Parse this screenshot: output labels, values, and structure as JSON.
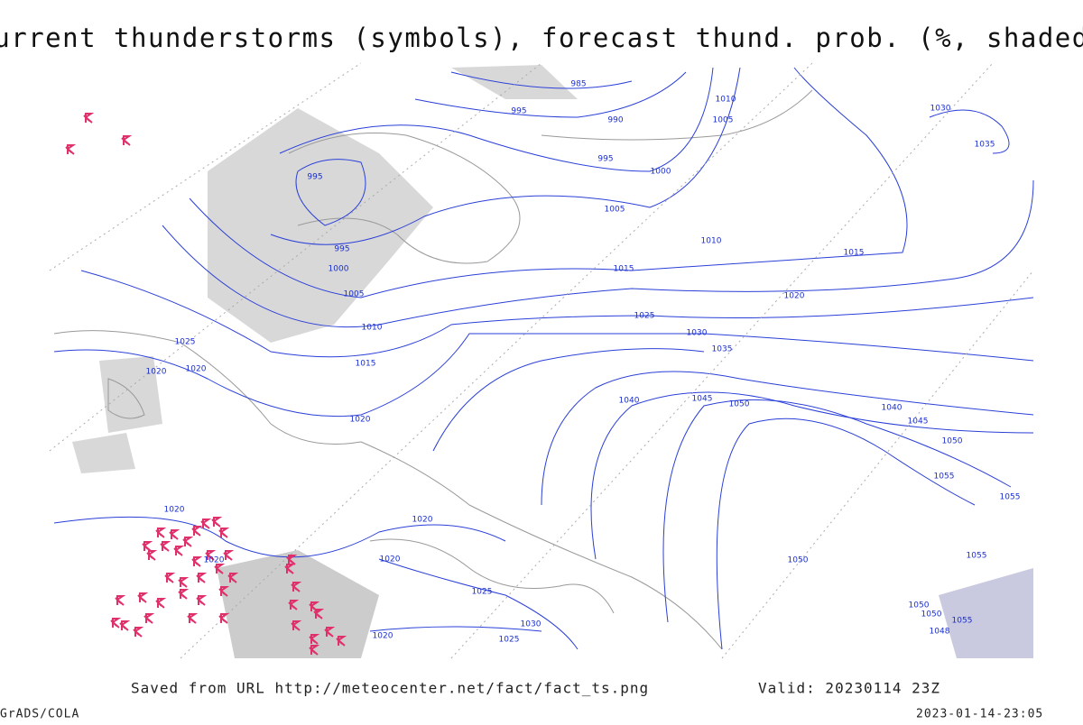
{
  "header": {
    "title": "Current thunderstorms (symbols), forecast thund. prob. (%, shaded)"
  },
  "map": {
    "isobar_labels": [
      "985",
      "995",
      "990",
      "995",
      "995",
      "1000",
      "995",
      "1000",
      "1005",
      "1010",
      "1005",
      "1010",
      "1005",
      "1010",
      "1015",
      "1015",
      "1020",
      "1025",
      "1030",
      "1035",
      "1025",
      "1020",
      "1020",
      "1015",
      "1020",
      "1040",
      "1045",
      "1050",
      "1040",
      "1045",
      "1050",
      "1055",
      "1055",
      "1020",
      "1020",
      "1020",
      "1020",
      "1025",
      "1030",
      "1025",
      "1020",
      "1050",
      "1030",
      "1035",
      "1050",
      "1050",
      "1048",
      "1055",
      "1055"
    ]
  },
  "footer": {
    "source": "Saved from URL http://meteocenter.net/fact/fact_ts.png",
    "valid": "Valid: 20230114 23Z",
    "software": "GrADS/COLA",
    "timestamp": "2023-01-14-23:05"
  }
}
